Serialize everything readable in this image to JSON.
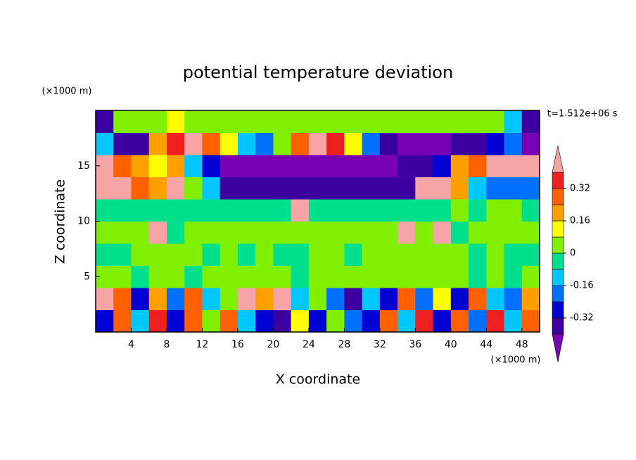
{
  "chart_data": {
    "type": "contour",
    "title": "potential temperature deviation",
    "y_unit_label": "(×1000 m)",
    "x_unit_label": "(×1000 m)",
    "time_label": "t=1.512e+06 s",
    "xlabel": "X coordinate",
    "ylabel": "Z coordinate",
    "xlim": [
      0,
      50
    ],
    "ylim": [
      0,
      20
    ],
    "xticks": [
      4,
      8,
      12,
      16,
      20,
      24,
      28,
      32,
      36,
      40,
      44,
      48
    ],
    "yticks": [
      5,
      10,
      15
    ],
    "x": [
      1,
      3,
      5,
      7,
      9,
      11,
      13,
      15,
      17,
      19,
      21,
      23,
      25,
      27,
      29,
      31,
      33,
      35,
      37,
      39,
      41,
      43,
      45,
      47,
      49
    ],
    "z": [
      1,
      3,
      5,
      7,
      9,
      11,
      13,
      15,
      17,
      19
    ],
    "values": [
      [
        -0.3,
        0.3,
        -0.1,
        0.35,
        -0.3,
        0.3,
        0.05,
        0.3,
        -0.1,
        -0.3,
        -0.35,
        0.1,
        -0.3,
        0.05,
        -0.2,
        -0.3,
        0.3,
        -0.1,
        0.35,
        -0.3,
        0.3,
        -0.2,
        0.35,
        -0.1,
        0.3
      ],
      [
        0.45,
        0.3,
        -0.3,
        0.2,
        -0.2,
        0.3,
        -0.1,
        0.05,
        0.45,
        0.2,
        0.45,
        -0.1,
        0.05,
        -0.2,
        -0.35,
        -0.1,
        -0.3,
        0.3,
        -0.2,
        0.1,
        -0.3,
        0.3,
        -0.1,
        -0.2,
        0.2
      ],
      [
        0.03,
        0.03,
        -0.02,
        0.03,
        0.03,
        -0.02,
        0.03,
        0.03,
        0.03,
        0.03,
        0.03,
        -0.02,
        0.03,
        0.03,
        0.03,
        0.03,
        0.03,
        0.03,
        0.03,
        0.03,
        0.03,
        -0.02,
        0.03,
        -0.02,
        0.03
      ],
      [
        -0.02,
        -0.02,
        0.03,
        0.03,
        0.03,
        0.03,
        -0.02,
        0.03,
        -0.02,
        0.03,
        -0.02,
        -0.02,
        0.03,
        0.03,
        -0.02,
        0.03,
        0.03,
        0.03,
        0.03,
        0.03,
        0.03,
        -0.02,
        0.03,
        -0.02,
        -0.02
      ],
      [
        0.03,
        0.03,
        0.03,
        0.45,
        -0.02,
        0.03,
        0.03,
        0.03,
        0.03,
        0.03,
        0.03,
        0.03,
        0.03,
        0.03,
        0.03,
        0.03,
        0.03,
        0.45,
        0.03,
        0.45,
        -0.02,
        0.03,
        0.03,
        0.03,
        0.03
      ],
      [
        -0.02,
        -0.02,
        -0.02,
        -0.02,
        -0.02,
        -0.02,
        -0.02,
        -0.02,
        -0.02,
        -0.02,
        -0.02,
        0.45,
        -0.02,
        -0.02,
        -0.02,
        -0.02,
        -0.02,
        -0.02,
        -0.02,
        -0.02,
        0.03,
        -0.02,
        0.03,
        0.03,
        -0.02
      ],
      [
        0.45,
        0.45,
        0.3,
        0.2,
        0.45,
        0.05,
        -0.1,
        -0.35,
        -0.35,
        -0.35,
        -0.35,
        -0.35,
        -0.35,
        -0.35,
        -0.35,
        -0.35,
        -0.35,
        -0.35,
        0.45,
        0.45,
        0.2,
        -0.1,
        -0.2,
        -0.2,
        -0.2
      ],
      [
        0.45,
        0.3,
        0.2,
        0.1,
        0.2,
        -0.1,
        -0.3,
        -0.45,
        -0.45,
        -0.45,
        -0.45,
        -0.45,
        -0.45,
        -0.45,
        -0.45,
        -0.45,
        -0.45,
        -0.35,
        -0.35,
        -0.3,
        0.2,
        0.3,
        0.45,
        0.45,
        0.45
      ],
      [
        -0.1,
        -0.35,
        -0.35,
        0.2,
        0.35,
        0.45,
        0.3,
        0.1,
        -0.1,
        -0.2,
        0.05,
        0.3,
        0.45,
        0.35,
        0.1,
        -0.2,
        -0.35,
        -0.45,
        -0.45,
        -0.45,
        -0.35,
        -0.35,
        -0.3,
        -0.2,
        -0.45
      ],
      [
        -0.35,
        0.03,
        0.03,
        0.03,
        0.1,
        0.03,
        0.03,
        0.03,
        0.03,
        0.03,
        0.03,
        0.03,
        0.03,
        0.03,
        0.03,
        0.03,
        0.03,
        0.03,
        0.03,
        0.03,
        0.03,
        0.03,
        0.03,
        -0.1,
        -0.35
      ]
    ],
    "levels": [
      -0.4,
      -0.32,
      -0.24,
      -0.16,
      -0.08,
      0,
      0.08,
      0.16,
      0.24,
      0.32,
      0.4
    ],
    "colors": [
      "#7800b4",
      "#3c00a0",
      "#0000d2",
      "#0070ff",
      "#00c8ff",
      "#00e08c",
      "#80f000",
      "#ffff00",
      "#ffa000",
      "#ff6000",
      "#f02020",
      "#f5a5a5"
    ],
    "colorbar_ticks": [
      -0.32,
      -0.16,
      0,
      0.16,
      0.32
    ]
  }
}
